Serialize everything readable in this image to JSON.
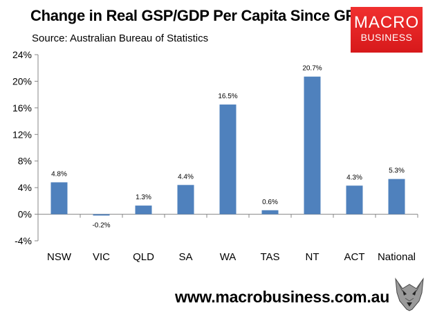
{
  "header": {
    "title": "Change in Real GSP/GDP Per Capita Since GFC",
    "subtitle": "Source: Australian Bureau of Statistics"
  },
  "logo": {
    "line1": "MACRO",
    "line2": "BUSINESS"
  },
  "footer": {
    "url": "www.macrobusiness.com.au",
    "mascot_icon": "wolf-icon"
  },
  "colors": {
    "bar": "#4f81bd",
    "axis": "#868686",
    "brand_red": "#e0201f"
  },
  "chart_data": {
    "type": "bar",
    "title": "Change in Real GSP/GDP Per Capita Since GFC",
    "xlabel": "",
    "ylabel": "",
    "categories": [
      "NSW",
      "VIC",
      "QLD",
      "SA",
      "WA",
      "TAS",
      "NT",
      "ACT",
      "National"
    ],
    "values": [
      4.8,
      -0.2,
      1.3,
      4.4,
      16.5,
      0.6,
      20.7,
      4.3,
      5.3
    ],
    "data_labels": [
      "4.8%",
      "-0.2%",
      "1.3%",
      "4.4%",
      "16.5%",
      "0.6%",
      "20.7%",
      "4.3%",
      "5.3%"
    ],
    "ylim": [
      -4,
      24
    ],
    "yticks": [
      -4,
      0,
      4,
      8,
      12,
      16,
      20,
      24
    ],
    "ytick_labels": [
      "-4%",
      "0%",
      "4%",
      "8%",
      "12%",
      "16%",
      "20%",
      "24%"
    ],
    "grid": false,
    "legend": "none"
  }
}
